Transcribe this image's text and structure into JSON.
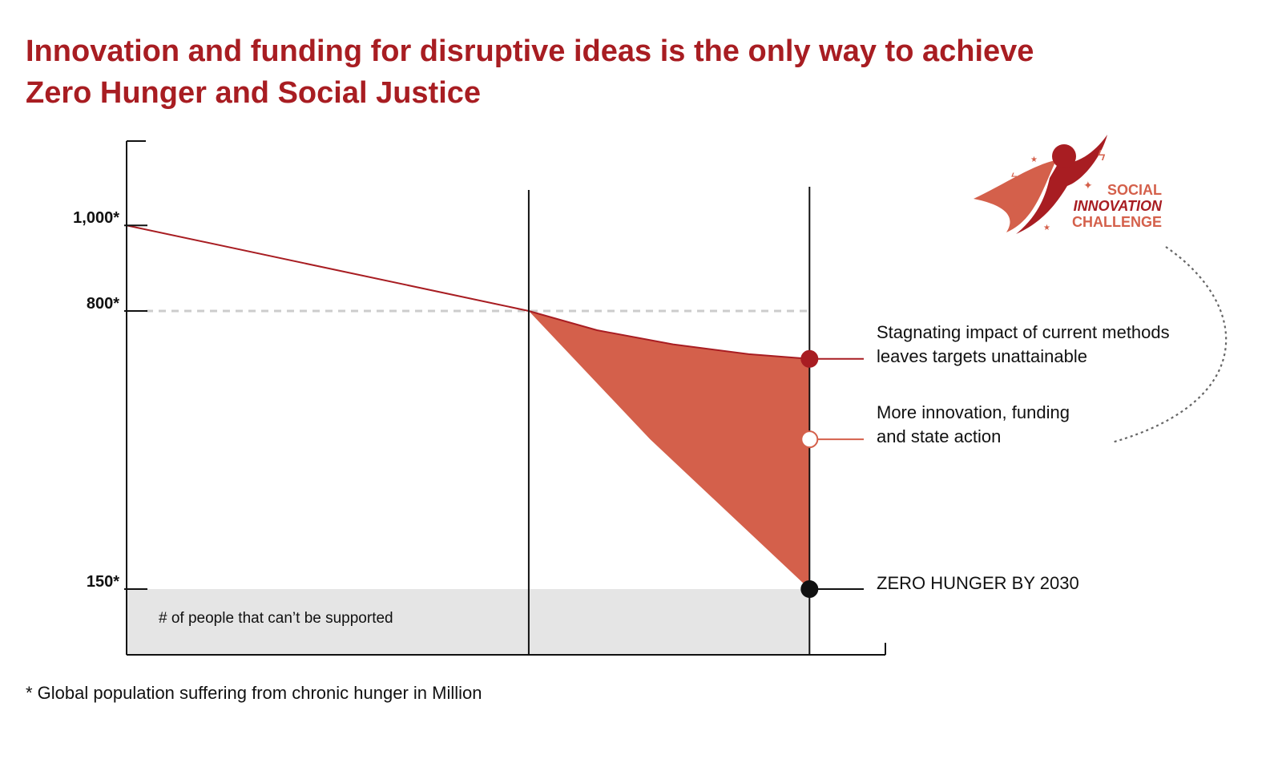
{
  "title": {
    "line1": "Innovation and funding for disruptive ideas is the only way to achieve",
    "line2": "Zero Hunger and Social Justice"
  },
  "footnote": "* Global population suffering from chronic hunger in Million",
  "logo": {
    "line1": "SOCIAL",
    "line2": "INNOVATION",
    "line3": "CHALLENGE"
  },
  "colors": {
    "title": "#a81d22",
    "line": "#a81d22",
    "fill": "#d4604b",
    "grey_band": "#e5e5e5",
    "dashed": "#cccccc"
  },
  "chart_data": {
    "type": "area",
    "ylim": [
      0,
      1200
    ],
    "y_ticks": [
      {
        "value": 1000,
        "label": "1,000*"
      },
      {
        "value": 800,
        "label": "800*"
      },
      {
        "value": 150,
        "label": "150*"
      }
    ],
    "x_range": [
      0,
      1
    ],
    "markers": [
      0.53,
      0.9
    ],
    "series": [
      {
        "name": "Stagnating impact of current methods leaves targets unattainable",
        "points": [
          [
            0,
            1000
          ],
          [
            0.53,
            800
          ],
          [
            0.62,
            755
          ],
          [
            0.72,
            722
          ],
          [
            0.82,
            699
          ],
          [
            0.9,
            688
          ]
        ]
      },
      {
        "name": "More innovation, funding and state action",
        "points": [
          [
            0.53,
            800
          ],
          [
            0.69,
            500
          ],
          [
            0.9,
            150
          ]
        ]
      }
    ],
    "reference_line": {
      "value": 800,
      "style": "dashed"
    },
    "band": {
      "from": 0,
      "to": 150,
      "label": "# of people that can’t be supported"
    },
    "annotations": [
      {
        "key": "stagnating",
        "lines": [
          "Stagnating impact of current methods",
          "leaves targets unattainable"
        ],
        "value": 688,
        "marker": "filled-red"
      },
      {
        "key": "innovation",
        "lines": [
          "More innovation, funding",
          "and state action"
        ],
        "value": 500,
        "marker": "hollow"
      },
      {
        "key": "zero",
        "lines": [
          "ZERO HUNGER BY 2030"
        ],
        "value": 150,
        "marker": "filled-black"
      }
    ]
  }
}
